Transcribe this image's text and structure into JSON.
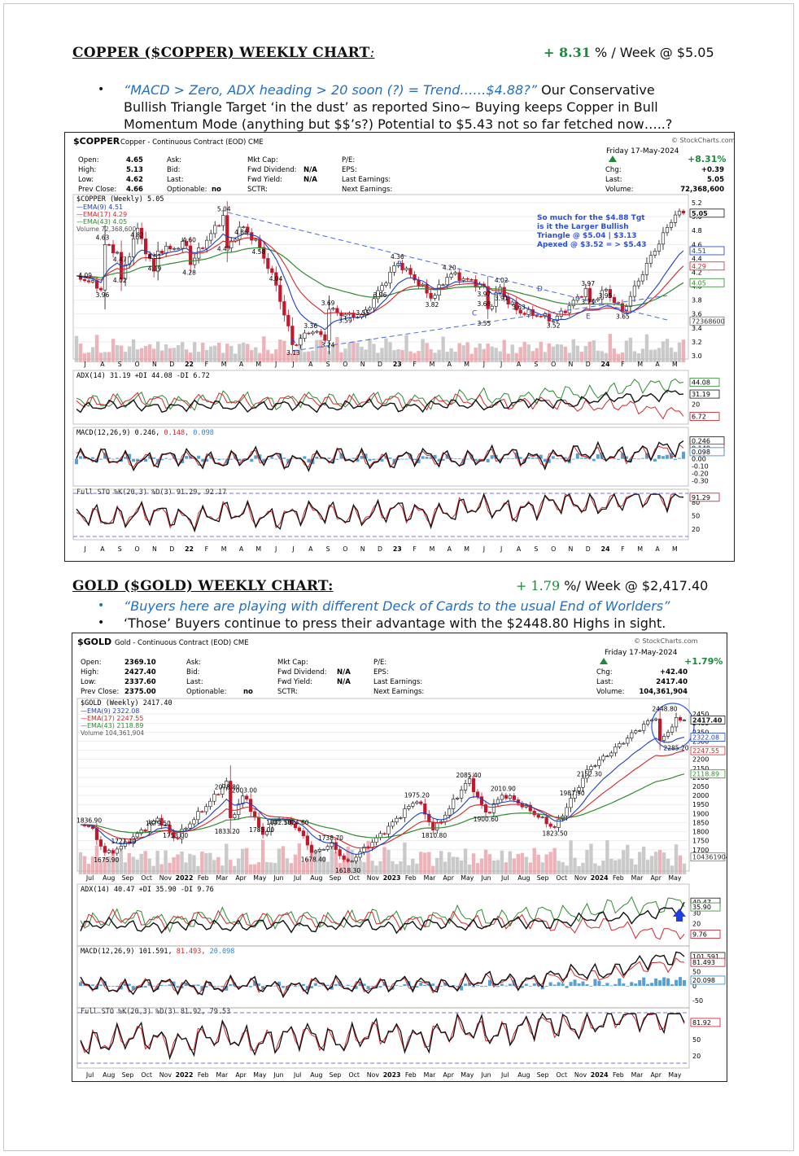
{
  "copper": {
    "title": "COPPER ($COPPER) WEEKLY CHART",
    "title_colon": ":",
    "perf_value": "+ 8.31",
    "perf_rest": " % / Week @ $5.05",
    "bullet_quote": "“MACD > Zero, ADX heading > 20 soon (?) = Trend……$4.88?”",
    "bullet_text_1": "  Our Conservative",
    "bullet_text_2": "Bullish Triangle Target ‘in the dust’ as reported Sino~ Buying keeps Copper in Bull",
    "bullet_text_3": "Momentum Mode (anything but $$’s?) Potential to $5.43 not so far fetched now…..?",
    "header": {
      "symbol": "$COPPER",
      "desc": "Copper - Continuous Contract (EOD) CME",
      "brand": "© StockCharts.com",
      "date": "Friday  17-May-2024",
      "change_pct": "+8.31%",
      "open_label": "Open:",
      "open": "4.65",
      "high_label": "High:",
      "high": "5.13",
      "low_label": "Low:",
      "low": "4.62",
      "prev_label": "Prev Close:",
      "prev": "4.66",
      "ask": "Ask:",
      "bid": "Bid:",
      "last_lbl": "Last:",
      "optionable": "Optionable:",
      "optionable_val": "no",
      "mktcap": "Mkt Cap:",
      "fwd_div": "Fwd Dividend:",
      "fwd_div_val": "N/A",
      "fwd_yield": "Fwd Yield:",
      "fwd_yield_val": "N/A",
      "sctr": "SCTR:",
      "pe": "P/E:",
      "eps": "EPS:",
      "last_earn": "Last Earnings:",
      "next_earn": "Next Earnings:",
      "chg_label": "Chg:",
      "chg": "+0.39",
      "last_label": "Last:",
      "last": "5.05",
      "vol_label": "Volume:",
      "volume": "72,368,600"
    },
    "legend": {
      "main": "$COPPER (Weekly) 5.05",
      "ema9": "—EMA(9) 4.51",
      "ema17": "—EMA(17) 4.29",
      "ema43": "—EMA(43) 4.05",
      "volume": "Volume 72,368,600"
    },
    "annotation": [
      "So much for the $4.88 Tgt",
      "is it the Larger Bullish",
      "Triangle @ $5.04 | $3.13",
      "Apexed @ $3.52 = > $5.43"
    ],
    "right_tags": {
      "last": "5.05",
      "ema9": "4.51",
      "ema17": "4.29",
      "ema43": "4.05",
      "vol": "72368600"
    },
    "adx_legend": "ADX(14) 31.19 +DI 44.08 -DI 6.72",
    "adx_tags": [
      "44.08",
      "31.19",
      "6.72"
    ],
    "macd_legend_a": "MACD(12,26,9) 0.246, ",
    "macd_legend_b": "0.148, ",
    "macd_legend_c": "0.098",
    "macd_tags": [
      "0.246",
      "0.148",
      "0.098"
    ],
    "sto_legend": "Full STO %K(20,3) %D(3) 91.29, 92.17",
    "sto_tags": [
      "91.29"
    ],
    "point_labels": [
      "4.09",
      "3.96",
      "4.63",
      "4.47",
      "4.02",
      "4.82",
      "4.19",
      "4.51",
      "4.60",
      "4.28",
      "5.04",
      "4.86",
      "4.47",
      "4.58",
      "4.04",
      "3.13",
      "3.36",
      "3.24",
      "3.69",
      "3.59",
      "3.55",
      "3.96",
      "4.36",
      "3.82",
      "4.20",
      "3.97",
      "4.02",
      "3.91",
      "3.68",
      "3.55",
      "3.63",
      "3.52",
      "3.97",
      "3.95",
      "3.71",
      "3.65"
    ],
    "wave_labels": [
      "A",
      "B",
      "C",
      "D",
      "E"
    ]
  },
  "gold": {
    "title": "GOLD ($GOLD) WEEKLY CHART:",
    "perf_value": "+ 1.79",
    "perf_rest": " %/ Week @ $2,417.40",
    "bullet_1": "“Buyers here are playing with different Deck of Cards to the usual End of Worlders”",
    "bullet_2": "‘Those’ Buyers continue to press their advantage with the $2448.80 Highs in sight.",
    "header": {
      "symbol": "$GOLD",
      "desc": "Gold - Continuous Contract (EOD) CME",
      "brand": "© StockCharts.com",
      "date": "Friday  17-May-2024",
      "change_pct": "+1.79%",
      "open_label": "Open:",
      "open": "2369.10",
      "high_label": "High:",
      "high": "2427.40",
      "low_label": "Low:",
      "low": "2337.60",
      "prev_label": "Prev Close:",
      "prev": "2375.00",
      "ask": "Ask:",
      "bid": "Bid:",
      "last_lbl": "Last:",
      "optionable": "Optionable:",
      "optionable_val": "no",
      "mktcap": "Mkt Cap:",
      "fwd_div": "Fwd Dividend:",
      "fwd_div_val": "N/A",
      "fwd_yield": "Fwd Yield:",
      "fwd_yield_val": "N/A",
      "sctr": "SCTR:",
      "pe": "P/E:",
      "eps": "EPS:",
      "last_earn": "Last Earnings:",
      "next_earn": "Next Earnings:",
      "chg_label": "Chg:",
      "chg": "+42.40",
      "last_label": "Last:",
      "last": "2417.40",
      "vol_label": "Volume:",
      "volume": "104,361,904"
    },
    "legend": {
      "main": "$GOLD (Weekly) 2417.40",
      "ema9": "—EMA(9) 2322.08",
      "ema17": "—EMA(17) 2247.55",
      "ema43": "—EMA(43) 2118.89",
      "volume": "Volume 104,361,904"
    },
    "right_tags": {
      "last": "2417.40",
      "ema9": "2322.08",
      "ema17": "2247.55",
      "ema43": "2118.89",
      "vol": "104361904",
      "high": "2448.80",
      "low": "2285.20"
    },
    "adx_legend": "ADX(14) 40.47 +DI 35.90 -DI 9.76",
    "adx_tags": [
      "40.47",
      "35.90",
      "9.76"
    ],
    "macd_legend_a": "MACD(12,26,9) 101.591, ",
    "macd_legend_b": "81.493, ",
    "macd_legend_c": "20.098",
    "macd_tags": [
      "101.591",
      "81.493",
      "20.098"
    ],
    "sto_legend": "Full STO %K(20,3) %D(3) 81.92, 79.53",
    "sto_tags": [
      "81.92"
    ],
    "point_labels": [
      "1836.90",
      "1675.90",
      "1721.10",
      "1879.50",
      "1753.00",
      "2078.80",
      "2003.00",
      "1833.20",
      "1785.00",
      "1882.50",
      "1824.60",
      "1678.40",
      "1738.70",
      "1618.30",
      "1975.20",
      "1810.80",
      "2085.40",
      "1900.60",
      "2010.90",
      "1823.50",
      "1987.90",
      "2152.30"
    ]
  },
  "chart_data": [
    {
      "type": "candlestick",
      "title": "$COPPER (Weekly) 5.05",
      "x_ticks": [
        "J",
        "A",
        "S",
        "O",
        "N",
        "D",
        "22",
        "F",
        "M",
        "A",
        "M",
        "J",
        "J",
        "A",
        "S",
        "O",
        "N",
        "D",
        "23",
        "F",
        "M",
        "A",
        "M",
        "J",
        "J",
        "A",
        "S",
        "O",
        "N",
        "D",
        "24",
        "F",
        "M",
        "A",
        "M"
      ],
      "ylim": [
        3.0,
        5.2
      ],
      "y_ticks": [
        3.0,
        3.2,
        3.4,
        3.6,
        3.8,
        4.0,
        4.2,
        4.4,
        4.6,
        4.8,
        5.0,
        5.2
      ],
      "labeled_points": [
        {
          "x": "2021-Jul",
          "y": 4.09
        },
        {
          "x": "2021-Aug",
          "y": 3.96
        },
        {
          "x": "2021-Aug",
          "y": 4.63
        },
        {
          "x": "2021-Sep",
          "y": 4.47
        },
        {
          "x": "2021-Sep",
          "y": 4.02
        },
        {
          "x": "2021-Oct",
          "y": 4.82
        },
        {
          "x": "2021-Nov",
          "y": 4.19
        },
        {
          "x": "2021-Nov",
          "y": 4.51
        },
        {
          "x": "2022-Jan",
          "y": 4.6
        },
        {
          "x": "2022-Jan",
          "y": 4.28
        },
        {
          "x": "2022-Mar",
          "y": 5.04
        },
        {
          "x": "2022-Apr",
          "y": 4.86
        },
        {
          "x": "2022-Mar",
          "y": 4.47
        },
        {
          "x": "2022-May",
          "y": 4.58
        },
        {
          "x": "2022-Jun",
          "y": 4.04
        },
        {
          "x": "2022-Jul",
          "y": 3.13
        },
        {
          "x": "2022-Aug",
          "y": 3.36
        },
        {
          "x": "2022-Sep",
          "y": 3.24
        },
        {
          "x": "2022-Sep",
          "y": 3.69
        },
        {
          "x": "2022-Oct",
          "y": 3.59
        },
        {
          "x": "2022-Nov",
          "y": 3.55
        },
        {
          "x": "2022-Dec",
          "y": 3.96
        },
        {
          "x": "2023-Jan",
          "y": 4.36
        },
        {
          "x": "2023-Mar",
          "y": 3.82
        },
        {
          "x": "2023-Apr",
          "y": 4.2
        },
        {
          "x": "2023-Jun",
          "y": 3.97
        },
        {
          "x": "2023-Jul",
          "y": 4.02
        },
        {
          "x": "2023-Jul",
          "y": 3.91
        },
        {
          "x": "2023-Jun",
          "y": 3.68
        },
        {
          "x": "2023-Jun",
          "y": 3.55
        },
        {
          "x": "2023-Aug",
          "y": 3.63
        },
        {
          "x": "2023-Oct",
          "y": 3.52
        },
        {
          "x": "2023-Dec",
          "y": 3.97
        },
        {
          "x": "2024-Jan",
          "y": 3.95
        },
        {
          "x": "2023-Dec",
          "y": 3.71
        },
        {
          "x": "2024-Feb",
          "y": 3.65
        },
        {
          "x": "2024-May",
          "y": 5.05
        }
      ],
      "series": [
        {
          "name": "EMA(9)",
          "last": 4.51
        },
        {
          "name": "EMA(17)",
          "last": 4.29
        },
        {
          "name": "EMA(43)",
          "last": 4.05
        }
      ],
      "indicators": {
        "ADX(14)": 31.19,
        "+DI": 44.08,
        "-DI": 6.72,
        "MACD": 0.246,
        "Signal": 0.148,
        "Histogram": 0.098,
        "%K": 91.29,
        "%D": 92.17
      }
    },
    {
      "type": "candlestick",
      "title": "$GOLD (Weekly) 2417.40",
      "x_ticks": [
        "Jul",
        "Aug",
        "Sep",
        "Oct",
        "Nov",
        "2022",
        "Feb",
        "Mar",
        "Apr",
        "May",
        "Jun",
        "Jul",
        "Aug",
        "Sep",
        "Oct",
        "Nov",
        "2023",
        "Feb",
        "Mar",
        "Apr",
        "May",
        "Jun",
        "Jul",
        "Aug",
        "Sep",
        "Oct",
        "Nov",
        "2024",
        "Feb",
        "Mar",
        "Apr",
        "May"
      ],
      "ylim": [
        1600,
        2500
      ],
      "y_ticks": [
        1650,
        1700,
        1750,
        1800,
        1850,
        1900,
        1950,
        2000,
        2050,
        2100,
        2150,
        2200,
        2250,
        2300,
        2350,
        2400,
        2450
      ],
      "labeled_points": [
        {
          "x": "2021-Jul",
          "y": 1836.9
        },
        {
          "x": "2021-Aug",
          "y": 1675.9
        },
        {
          "x": "2021-Sep",
          "y": 1721.1
        },
        {
          "x": "2021-Nov",
          "y": 1879.5
        },
        {
          "x": "2021-Dec",
          "y": 1753.0
        },
        {
          "x": "2022-Mar",
          "y": 2078.8
        },
        {
          "x": "2022-Apr",
          "y": 2003.0
        },
        {
          "x": "2022-Mar",
          "y": 1833.2
        },
        {
          "x": "2022-May",
          "y": 1785.0
        },
        {
          "x": "2022-Jun",
          "y": 1882.5
        },
        {
          "x": "2022-Jul",
          "y": 1824.6
        },
        {
          "x": "2022-Aug",
          "y": 1678.4
        },
        {
          "x": "2022-Sep",
          "y": 1738.7
        },
        {
          "x": "2022-Oct",
          "y": 1618.3
        },
        {
          "x": "2023-Feb",
          "y": 1975.2
        },
        {
          "x": "2023-Mar",
          "y": 1810.8
        },
        {
          "x": "2023-May",
          "y": 2085.4
        },
        {
          "x": "2023-Jun",
          "y": 1900.6
        },
        {
          "x": "2023-Jul",
          "y": 2010.9
        },
        {
          "x": "2023-Oct",
          "y": 1823.5
        },
        {
          "x": "2023-Nov",
          "y": 1987.9
        },
        {
          "x": "2023-Dec",
          "y": 2152.3
        },
        {
          "x": "2024-Apr",
          "y": 2448.8
        },
        {
          "x": "2024-Apr",
          "y": 2285.2
        },
        {
          "x": "2024-May",
          "y": 2417.4
        }
      ],
      "series": [
        {
          "name": "EMA(9)",
          "last": 2322.08
        },
        {
          "name": "EMA(17)",
          "last": 2247.55
        },
        {
          "name": "EMA(43)",
          "last": 2118.89
        }
      ],
      "indicators": {
        "ADX(14)": 40.47,
        "+DI": 35.9,
        "-DI": 9.76,
        "MACD": 101.591,
        "Signal": 81.493,
        "Histogram": 20.098,
        "%K": 81.92,
        "%D": 79.53
      }
    }
  ],
  "colors": {
    "green": "#1a8a3a",
    "quote_blue": "#1f6fc1",
    "ema9": "#1e3fbf",
    "ema17": "#d0262c",
    "ema43": "#2e8b2e",
    "annotation": "#2a4fd8"
  }
}
